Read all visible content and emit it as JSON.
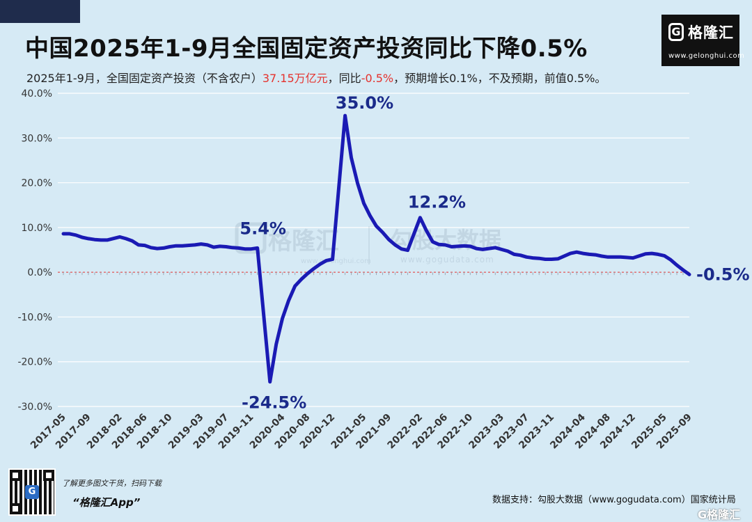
{
  "header": {
    "title": "中国2025年1-9月全国固定资产投资同比下降0.5%",
    "subtitle_parts": {
      "p1": "2025年1-9月，全国固定资产投资（不含农户）",
      "p2": "37.15万亿元",
      "p3": "，同比",
      "p4": "-0.5%",
      "p5": "，预期增长0.1%，不及预期，前值0.5%。"
    }
  },
  "logo": {
    "icon": "G",
    "name": "格隆汇",
    "url": "www.gelonghui.com"
  },
  "watermark": {
    "left_name": "格隆汇",
    "left_url": "www.gelonghui.com",
    "right_name": "勾股大数据",
    "right_url": "www.gogudata.com"
  },
  "footer": {
    "promo_line1": "了解更多图文干货，扫码下载",
    "promo_line2": "“格隆汇App”",
    "source": "数据支持：勾股大数据（www.gogudata.com）国家统计局",
    "corner_logo": "G格隆汇"
  },
  "colors": {
    "background": "#d6eaf5",
    "line": "#1a1ab4",
    "grid": "#ffffff",
    "zero_line": "#e5322d",
    "highlight": "#e5322d",
    "annotation": "#1a2a8a"
  },
  "chart_data": {
    "type": "line",
    "title": "中国2025年1-9月全国固定资产投资同比下降0.5%",
    "xlabel": "",
    "ylabel": "",
    "ylim": [
      -30,
      40
    ],
    "yticks": [
      40,
      30,
      20,
      10,
      0,
      -10,
      -20,
      -30
    ],
    "ytick_labels": [
      "40.0%",
      "30.0%",
      "20.0%",
      "10.0%",
      "0.0%",
      "-10.0%",
      "-20.0%",
      "-30.0%"
    ],
    "grid": true,
    "xtick_labels": [
      "2017-05",
      "2017-09",
      "2018-02",
      "2018-06",
      "2018-10",
      "2019-03",
      "2019-07",
      "2019-11",
      "2020-04",
      "2020-08",
      "2020-12",
      "2021-05",
      "2021-09",
      "2022-02",
      "2022-06",
      "2022-10",
      "2023-03",
      "2023-07",
      "2023-11",
      "2024-04",
      "2024-08",
      "2024-12",
      "2025-05",
      "2025-09"
    ],
    "series": [
      {
        "values": [
          {
            "x": "2017-05",
            "y": 8.6
          },
          {
            "x": "2017-06",
            "y": 8.6
          },
          {
            "x": "2017-07",
            "y": 8.3
          },
          {
            "x": "2017-08",
            "y": 7.8
          },
          {
            "x": "2017-09",
            "y": 7.5
          },
          {
            "x": "2017-10",
            "y": 7.3
          },
          {
            "x": "2017-11",
            "y": 7.2
          },
          {
            "x": "2017-12",
            "y": 7.2
          },
          {
            "x": "2018-02",
            "y": 7.9
          },
          {
            "x": "2018-03",
            "y": 7.5
          },
          {
            "x": "2018-04",
            "y": 7.0
          },
          {
            "x": "2018-05",
            "y": 6.1
          },
          {
            "x": "2018-06",
            "y": 6.0
          },
          {
            "x": "2018-07",
            "y": 5.5
          },
          {
            "x": "2018-08",
            "y": 5.3
          },
          {
            "x": "2018-09",
            "y": 5.4
          },
          {
            "x": "2018-10",
            "y": 5.7
          },
          {
            "x": "2018-11",
            "y": 5.9
          },
          {
            "x": "2018-12",
            "y": 5.9
          },
          {
            "x": "2019-02",
            "y": 6.1
          },
          {
            "x": "2019-03",
            "y": 6.3
          },
          {
            "x": "2019-04",
            "y": 6.1
          },
          {
            "x": "2019-05",
            "y": 5.6
          },
          {
            "x": "2019-06",
            "y": 5.8
          },
          {
            "x": "2019-07",
            "y": 5.7
          },
          {
            "x": "2019-08",
            "y": 5.5
          },
          {
            "x": "2019-09",
            "y": 5.4
          },
          {
            "x": "2019-10",
            "y": 5.2
          },
          {
            "x": "2019-11",
            "y": 5.2
          },
          {
            "x": "2019-12",
            "y": 5.4
          },
          {
            "x": "2020-02",
            "y": -24.5
          },
          {
            "x": "2020-03",
            "y": -16.1
          },
          {
            "x": "2020-04",
            "y": -10.3
          },
          {
            "x": "2020-05",
            "y": -6.3
          },
          {
            "x": "2020-06",
            "y": -3.1
          },
          {
            "x": "2020-07",
            "y": -1.6
          },
          {
            "x": "2020-08",
            "y": -0.3
          },
          {
            "x": "2020-09",
            "y": 0.8
          },
          {
            "x": "2020-10",
            "y": 1.8
          },
          {
            "x": "2020-11",
            "y": 2.6
          },
          {
            "x": "2020-12",
            "y": 2.9
          },
          {
            "x": "2021-02",
            "y": 35.0
          },
          {
            "x": "2021-03",
            "y": 25.6
          },
          {
            "x": "2021-04",
            "y": 19.9
          },
          {
            "x": "2021-05",
            "y": 15.4
          },
          {
            "x": "2021-06",
            "y": 12.6
          },
          {
            "x": "2021-07",
            "y": 10.3
          },
          {
            "x": "2021-08",
            "y": 8.9
          },
          {
            "x": "2021-09",
            "y": 7.3
          },
          {
            "x": "2021-10",
            "y": 6.1
          },
          {
            "x": "2021-11",
            "y": 5.2
          },
          {
            "x": "2021-12",
            "y": 4.9
          },
          {
            "x": "2022-02",
            "y": 12.2
          },
          {
            "x": "2022-03",
            "y": 9.3
          },
          {
            "x": "2022-04",
            "y": 6.8
          },
          {
            "x": "2022-05",
            "y": 6.2
          },
          {
            "x": "2022-06",
            "y": 6.1
          },
          {
            "x": "2022-07",
            "y": 5.7
          },
          {
            "x": "2022-08",
            "y": 5.8
          },
          {
            "x": "2022-09",
            "y": 5.9
          },
          {
            "x": "2022-10",
            "y": 5.8
          },
          {
            "x": "2022-11",
            "y": 5.3
          },
          {
            "x": "2022-12",
            "y": 5.1
          },
          {
            "x": "2023-02",
            "y": 5.5
          },
          {
            "x": "2023-03",
            "y": 5.1
          },
          {
            "x": "2023-04",
            "y": 4.7
          },
          {
            "x": "2023-05",
            "y": 4.0
          },
          {
            "x": "2023-06",
            "y": 3.8
          },
          {
            "x": "2023-07",
            "y": 3.4
          },
          {
            "x": "2023-08",
            "y": 3.2
          },
          {
            "x": "2023-09",
            "y": 3.1
          },
          {
            "x": "2023-10",
            "y": 2.9
          },
          {
            "x": "2023-11",
            "y": 2.9
          },
          {
            "x": "2023-12",
            "y": 3.0
          },
          {
            "x": "2024-02",
            "y": 4.2
          },
          {
            "x": "2024-03",
            "y": 4.5
          },
          {
            "x": "2024-04",
            "y": 4.2
          },
          {
            "x": "2024-05",
            "y": 4.0
          },
          {
            "x": "2024-06",
            "y": 3.9
          },
          {
            "x": "2024-07",
            "y": 3.6
          },
          {
            "x": "2024-08",
            "y": 3.4
          },
          {
            "x": "2024-09",
            "y": 3.4
          },
          {
            "x": "2024-10",
            "y": 3.4
          },
          {
            "x": "2024-11",
            "y": 3.3
          },
          {
            "x": "2024-12",
            "y": 3.2
          },
          {
            "x": "2025-02",
            "y": 4.1
          },
          {
            "x": "2025-03",
            "y": 4.2
          },
          {
            "x": "2025-04",
            "y": 4.0
          },
          {
            "x": "2025-05",
            "y": 3.7
          },
          {
            "x": "2025-06",
            "y": 2.8
          },
          {
            "x": "2025-07",
            "y": 1.6
          },
          {
            "x": "2025-08",
            "y": 0.5
          },
          {
            "x": "2025-09",
            "y": -0.5
          }
        ]
      }
    ],
    "annotations": [
      {
        "x": "2019-12",
        "y": 5.4,
        "text": "5.4%"
      },
      {
        "x": "2020-02",
        "y": -24.5,
        "text": "-24.5%"
      },
      {
        "x": "2021-02",
        "y": 35.0,
        "text": "35.0%"
      },
      {
        "x": "2022-02",
        "y": 12.2,
        "text": "12.2%"
      },
      {
        "x": "2025-09",
        "y": -0.5,
        "text": "-0.5%"
      }
    ]
  }
}
